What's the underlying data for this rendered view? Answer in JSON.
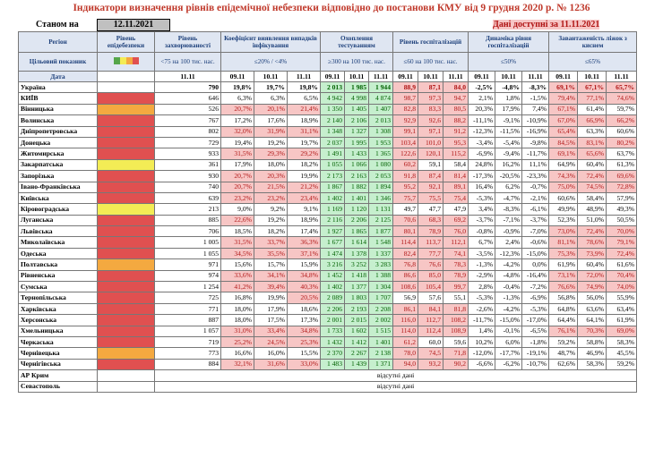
{
  "title": "Індикатори визначення рівнів епідемічної небезпеки відповідно до постанови КМУ від 9 грудня 2020 р. № 1236",
  "status_label": "Станом на",
  "status_date": "12.11.2021",
  "data_available": "Дані доступні за 11.11.2021",
  "headers": {
    "region": "Регіон",
    "level": "Рівень епідебезпеки",
    "incidence": "Рівень захворюваності",
    "detection": "Коефіцієнт виявлення випадків інфікування",
    "testing": "Охоплення тестуванням",
    "hosp": "Рівень госпіталізацій",
    "hosp_dyn": "Динаміка рівня госпіталізацій",
    "oxygen": "Завантаженість ліжок з киснем"
  },
  "targets": {
    "label": "Цільовий показник",
    "incidence": "<75 на 100 тис. нас.",
    "detection": "≤20% / <4%",
    "testing": "≥300 на 100 тис. нас.",
    "hosp": "≤60 на 100 тис. нас.",
    "hosp_dyn": "≤50%",
    "oxygen": "≤65%"
  },
  "level_colors": [
    "#55a64a",
    "#f3ec55",
    "#f4a940",
    "#e05050"
  ],
  "date_label": "Дата",
  "dates": {
    "incidence": "11.11",
    "detection": [
      "09.11",
      "10.11",
      "11.11"
    ],
    "testing": [
      "09.11",
      "10.11",
      "11.11"
    ],
    "hosp": [
      "09.11",
      "10.11",
      "11.11"
    ],
    "hosp_dyn": [
      "09.11",
      "10.11",
      "11.11"
    ],
    "oxygen": [
      "09.11",
      "10.11",
      "11.11"
    ]
  },
  "rows": [
    {
      "region": "Україна",
      "level": "",
      "inc": "790",
      "det": [
        "19,8%",
        "19,7%",
        "19,8%"
      ],
      "test": [
        "2 013",
        "1 985",
        "1 944"
      ],
      "hosp": [
        "88,9",
        "87,1",
        "84,0"
      ],
      "dyn": [
        "-2,5%",
        "-4,8%",
        "-8,3%"
      ],
      "oxy": [
        "69,1%",
        "67,1%",
        "65,7%"
      ]
    },
    {
      "region": "КИЇВ",
      "level": "red",
      "inc": "646",
      "det": [
        "6,3%",
        "6,3%",
        "6,5%"
      ],
      "test": [
        "4 942",
        "4 998",
        "4 874"
      ],
      "hosp": [
        "98,7",
        "97,3",
        "94,7"
      ],
      "dyn": [
        "2,1%",
        "1,8%",
        "-1,5%"
      ],
      "oxy": [
        "79,4%",
        "77,1%",
        "74,6%"
      ]
    },
    {
      "region": "Вінницька",
      "level": "orange",
      "inc": "526",
      "det": [
        "20,7%",
        "20,1%",
        "21,4%"
      ],
      "test": [
        "1 350",
        "1 405",
        "1 407"
      ],
      "hosp": [
        "82,8",
        "83,3",
        "80,5"
      ],
      "dyn": [
        "20,3%",
        "17,9%",
        "7,4%"
      ],
      "oxy": [
        "67,1%",
        "61,4%",
        "59,7%"
      ]
    },
    {
      "region": "Волинська",
      "level": "red",
      "inc": "767",
      "det": [
        "17,2%",
        "17,6%",
        "18,9%"
      ],
      "test": [
        "2 140",
        "2 106",
        "2 013"
      ],
      "hosp": [
        "92,9",
        "92,6",
        "88,2"
      ],
      "dyn": [
        "-11,1%",
        "-9,1%",
        "-10,9%"
      ],
      "oxy": [
        "67,0%",
        "66,9%",
        "66,2%"
      ]
    },
    {
      "region": "Дніпропетровська",
      "level": "red",
      "inc": "802",
      "det": [
        "32,0%",
        "31,9%",
        "31,1%"
      ],
      "test": [
        "1 348",
        "1 327",
        "1 308"
      ],
      "hosp": [
        "99,1",
        "97,1",
        "91,2"
      ],
      "dyn": [
        "-12,3%",
        "-11,5%",
        "-16,9%"
      ],
      "oxy": [
        "65,4%",
        "63,3%",
        "60,6%"
      ]
    },
    {
      "region": "Донецька",
      "level": "red",
      "inc": "729",
      "det": [
        "19,4%",
        "19,2%",
        "19,7%"
      ],
      "test": [
        "2 037",
        "1 995",
        "1 953"
      ],
      "hosp": [
        "103,4",
        "101,0",
        "95,3"
      ],
      "dyn": [
        "-3,4%",
        "-5,4%",
        "-9,8%"
      ],
      "oxy": [
        "84,5%",
        "83,1%",
        "80,2%"
      ]
    },
    {
      "region": "Житомирська",
      "level": "red",
      "inc": "933",
      "det": [
        "31,5%",
        "29,3%",
        "29,2%"
      ],
      "test": [
        "1 491",
        "1 433",
        "1 365"
      ],
      "hosp": [
        "122,6",
        "120,1",
        "115,2"
      ],
      "dyn": [
        "-6,9%",
        "-9,4%",
        "-11,7%"
      ],
      "oxy": [
        "69,1%",
        "65,6%",
        "63,7%"
      ]
    },
    {
      "region": "Закарпатська",
      "level": "yellow",
      "inc": "361",
      "det": [
        "17,9%",
        "18,0%",
        "18,2%"
      ],
      "test": [
        "1 055",
        "1 066",
        "1 080"
      ],
      "hosp": [
        "60,2",
        "59,1",
        "58,4"
      ],
      "dyn": [
        "24,8%",
        "16,2%",
        "11,1%"
      ],
      "oxy": [
        "64,9%",
        "60,4%",
        "61,3%"
      ]
    },
    {
      "region": "Запорізька",
      "level": "red",
      "inc": "930",
      "det": [
        "20,7%",
        "20,3%",
        "19,9%"
      ],
      "test": [
        "2 173",
        "2 163",
        "2 053"
      ],
      "hosp": [
        "91,8",
        "87,4",
        "81,4"
      ],
      "dyn": [
        "-17,3%",
        "-20,5%",
        "-23,3%"
      ],
      "oxy": [
        "74,3%",
        "72,4%",
        "69,6%"
      ]
    },
    {
      "region": "Івано-Франківська",
      "level": "red",
      "inc": "740",
      "det": [
        "20,7%",
        "21,5%",
        "21,2%"
      ],
      "test": [
        "1 867",
        "1 882",
        "1 894"
      ],
      "hosp": [
        "95,2",
        "92,1",
        "89,1"
      ],
      "dyn": [
        "16,4%",
        "6,2%",
        "-0,7%"
      ],
      "oxy": [
        "75,0%",
        "74,5%",
        "72,8%"
      ]
    },
    {
      "region": "Київська",
      "level": "red",
      "inc": "639",
      "det": [
        "23,2%",
        "23,2%",
        "23,4%"
      ],
      "test": [
        "1 402",
        "1 401",
        "1 346"
      ],
      "hosp": [
        "75,7",
        "75,5",
        "75,4"
      ],
      "dyn": [
        "-5,3%",
        "-4,7%",
        "-2,1%"
      ],
      "oxy": [
        "60,6%",
        "58,4%",
        "57,9%"
      ]
    },
    {
      "region": "Кіровоградська",
      "level": "yellow",
      "inc": "213",
      "det": [
        "9,0%",
        "9,2%",
        "9,1%"
      ],
      "test": [
        "1 169",
        "1 120",
        "1 131"
      ],
      "hosp": [
        "49,7",
        "47,7",
        "47,9"
      ],
      "dyn": [
        "3,4%",
        "-8,3%",
        "-6,1%"
      ],
      "oxy": [
        "49,9%",
        "48,9%",
        "49,3%"
      ]
    },
    {
      "region": "Луганська",
      "level": "red",
      "inc": "885",
      "det": [
        "22,6%",
        "19,2%",
        "18,9%"
      ],
      "test": [
        "2 116",
        "2 206",
        "2 125"
      ],
      "hosp": [
        "70,6",
        "68,3",
        "69,2"
      ],
      "dyn": [
        "-3,7%",
        "-7,1%",
        "-3,7%"
      ],
      "oxy": [
        "52,3%",
        "51,0%",
        "50,5%"
      ]
    },
    {
      "region": "Львівська",
      "level": "red",
      "inc": "706",
      "det": [
        "18,5%",
        "18,2%",
        "17,4%"
      ],
      "test": [
        "1 927",
        "1 865",
        "1 877"
      ],
      "hosp": [
        "80,1",
        "78,9",
        "76,0"
      ],
      "dyn": [
        "-0,8%",
        "-0,9%",
        "-7,0%"
      ],
      "oxy": [
        "73,0%",
        "72,4%",
        "70,0%"
      ]
    },
    {
      "region": "Миколаївська",
      "level": "red",
      "inc": "1 005",
      "det": [
        "31,5%",
        "33,7%",
        "36,3%"
      ],
      "test": [
        "1 677",
        "1 614",
        "1 548"
      ],
      "hosp": [
        "114,4",
        "113,7",
        "112,1"
      ],
      "dyn": [
        "6,7%",
        "2,4%",
        "-0,6%"
      ],
      "oxy": [
        "81,1%",
        "78,6%",
        "79,1%"
      ]
    },
    {
      "region": "Одеська",
      "level": "red",
      "inc": "1 055",
      "det": [
        "34,5%",
        "35,5%",
        "37,1%"
      ],
      "test": [
        "1 474",
        "1 378",
        "1 337"
      ],
      "hosp": [
        "82,4",
        "77,7",
        "74,1"
      ],
      "dyn": [
        "-3,5%",
        "-12,3%",
        "-15,0%"
      ],
      "oxy": [
        "75,3%",
        "73,9%",
        "72,4%"
      ]
    },
    {
      "region": "Полтавська",
      "level": "orange",
      "inc": "971",
      "det": [
        "15,6%",
        "15,7%",
        "15,9%"
      ],
      "test": [
        "3 216",
        "3 252",
        "3 283"
      ],
      "hosp": [
        "76,8",
        "76,6",
        "78,3"
      ],
      "dyn": [
        "-1,3%",
        "-4,2%",
        "0,0%"
      ],
      "oxy": [
        "61,9%",
        "60,4%",
        "61,6%"
      ]
    },
    {
      "region": "Рівненська",
      "level": "red",
      "inc": "974",
      "det": [
        "33,6%",
        "34,1%",
        "34,8%"
      ],
      "test": [
        "1 452",
        "1 418",
        "1 388"
      ],
      "hosp": [
        "86,6",
        "85,0",
        "78,9"
      ],
      "dyn": [
        "-2,9%",
        "-4,8%",
        "-16,4%"
      ],
      "oxy": [
        "73,1%",
        "72,0%",
        "70,4%"
      ]
    },
    {
      "region": "Сумська",
      "level": "red",
      "inc": "1 254",
      "det": [
        "41,2%",
        "39,4%",
        "40,3%"
      ],
      "test": [
        "1 402",
        "1 377",
        "1 304"
      ],
      "hosp": [
        "108,6",
        "105,4",
        "99,7"
      ],
      "dyn": [
        "2,8%",
        "-0,4%",
        "-7,2%"
      ],
      "oxy": [
        "76,6%",
        "74,9%",
        "74,0%"
      ]
    },
    {
      "region": "Тернопільська",
      "level": "red",
      "inc": "725",
      "det": [
        "16,8%",
        "19,9%",
        "20,5%"
      ],
      "test": [
        "2 089",
        "1 803",
        "1 707"
      ],
      "hosp": [
        "56,9",
        "57,6",
        "55,1"
      ],
      "dyn": [
        "-5,3%",
        "-1,3%",
        "-6,9%"
      ],
      "oxy": [
        "56,8%",
        "56,0%",
        "55,9%"
      ]
    },
    {
      "region": "Харківська",
      "level": "red",
      "inc": "771",
      "det": [
        "18,0%",
        "17,9%",
        "18,6%"
      ],
      "test": [
        "2 206",
        "2 193",
        "2 208"
      ],
      "hosp": [
        "86,1",
        "84,1",
        "81,8"
      ],
      "dyn": [
        "-2,6%",
        "-4,2%",
        "-5,3%"
      ],
      "oxy": [
        "64,8%",
        "63,6%",
        "63,4%"
      ]
    },
    {
      "region": "Херсонська",
      "level": "red",
      "inc": "887",
      "det": [
        "18,0%",
        "17,5%",
        "17,3%"
      ],
      "test": [
        "2 001",
        "2 015",
        "2 002"
      ],
      "hosp": [
        "116,0",
        "112,7",
        "108,2"
      ],
      "dyn": [
        "-11,7%",
        "-15,0%",
        "-17,0%"
      ],
      "oxy": [
        "64,4%",
        "64,1%",
        "61,9%"
      ]
    },
    {
      "region": "Хмельницька",
      "level": "red",
      "inc": "1 057",
      "det": [
        "31,0%",
        "33,4%",
        "34,8%"
      ],
      "test": [
        "1 733",
        "1 602",
        "1 515"
      ],
      "hosp": [
        "114,0",
        "112,4",
        "108,9"
      ],
      "dyn": [
        "1,4%",
        "-0,1%",
        "-6,5%"
      ],
      "oxy": [
        "76,1%",
        "70,3%",
        "69,0%"
      ]
    },
    {
      "region": "Черкаська",
      "level": "red",
      "inc": "719",
      "det": [
        "25,2%",
        "24,5%",
        "25,3%"
      ],
      "test": [
        "1 432",
        "1 412",
        "1 401"
      ],
      "hosp": [
        "61,2",
        "60,0",
        "59,6"
      ],
      "dyn": [
        "10,2%",
        "6,0%",
        "-1,8%"
      ],
      "oxy": [
        "59,2%",
        "58,8%",
        "58,3%"
      ]
    },
    {
      "region": "Чернівецька",
      "level": "orange",
      "inc": "773",
      "det": [
        "16,6%",
        "16,0%",
        "15,5%"
      ],
      "test": [
        "2 370",
        "2 267",
        "2 138"
      ],
      "hosp": [
        "78,0",
        "74,5",
        "71,8"
      ],
      "dyn": [
        "-12,0%",
        "-17,7%",
        "-19,1%"
      ],
      "oxy": [
        "48,7%",
        "46,9%",
        "45,5%"
      ]
    },
    {
      "region": "Чернігівська",
      "level": "red",
      "inc": "884",
      "det": [
        "32,1%",
        "31,6%",
        "33,0%"
      ],
      "test": [
        "1 483",
        "1 439",
        "1 371"
      ],
      "hosp": [
        "94,0",
        "93,2",
        "90,2"
      ],
      "dyn": [
        "-6,6%",
        "-6,2%",
        "-10,7%"
      ],
      "oxy": [
        "62,6%",
        "58,3%",
        "59,2%"
      ]
    }
  ],
  "nodata_rows": [
    {
      "region": "АР Крим",
      "text": "відсутні дані"
    },
    {
      "region": "Севастополь",
      "text": "відсутні дані"
    }
  ]
}
